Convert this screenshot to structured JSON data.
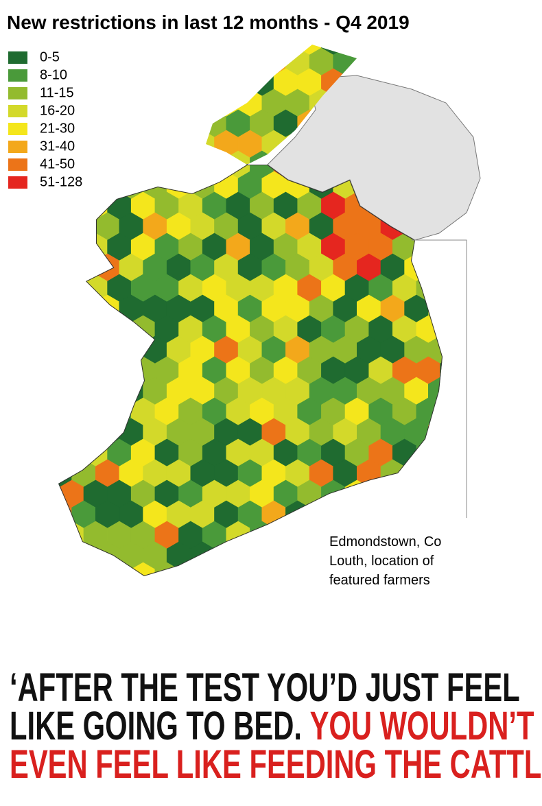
{
  "title": "New restrictions in last 12 months - Q4 2019",
  "legend": [
    {
      "label": "0-5",
      "color": "#1f6b30"
    },
    {
      "label": "8-10",
      "color": "#4a9a3a"
    },
    {
      "label": "11-15",
      "color": "#93bb2e"
    },
    {
      "label": "16-20",
      "color": "#d3d92a"
    },
    {
      "label": "21-30",
      "color": "#f4e61c"
    },
    {
      "label": "31-40",
      "color": "#f3a81b"
    },
    {
      "label": "41-50",
      "color": "#ec7418"
    },
    {
      "label": "51-128",
      "color": "#e5261f"
    }
  ],
  "annotation": [
    "Edmondstown, Co",
    "Louth, location of",
    "featured farmers"
  ],
  "quote": {
    "black": [
      "‘AFTER THE TEST YOU’D JUST FEEL",
      "LIKE GOING TO BED."
    ],
    "red": [
      "YOU WOULDN’T",
      "EVEN FEEL LIKE FEEDING THE CATTLE’"
    ]
  }
}
